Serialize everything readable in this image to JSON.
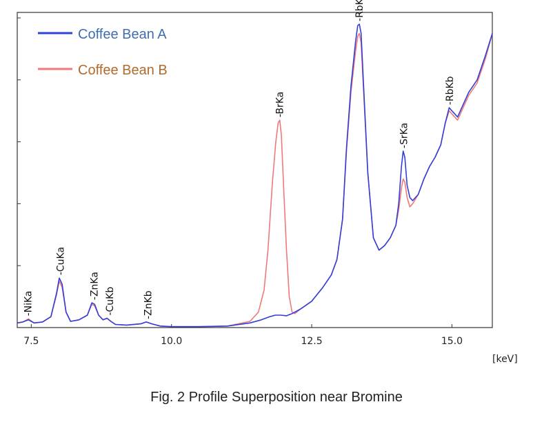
{
  "chart_data": {
    "type": "line",
    "xlabel": "[keV]",
    "ylabel": "",
    "xlim": [
      7.25,
      15.72
    ],
    "ylim": [
      0,
      100
    ],
    "x_ticks": [
      "7.5",
      "10.0",
      "12.5",
      "15.0"
    ],
    "x_tick_values": [
      7.5,
      10.0,
      12.5,
      15.0
    ],
    "y_tick_values": [
      0,
      20,
      40,
      60,
      80,
      100
    ],
    "grid": false,
    "legend_position": "top-left",
    "series": [
      {
        "name": "Coffee Bean A",
        "color": "#2f3fd8",
        "x": [
          7.25,
          7.35,
          7.45,
          7.55,
          7.7,
          7.85,
          7.95,
          8.0,
          8.05,
          8.12,
          8.2,
          8.35,
          8.5,
          8.58,
          8.63,
          8.7,
          8.78,
          8.85,
          8.92,
          9.0,
          9.2,
          9.45,
          9.55,
          9.65,
          9.8,
          10.0,
          10.5,
          11.0,
          11.4,
          11.6,
          11.75,
          11.85,
          11.95,
          12.05,
          12.15,
          12.3,
          12.5,
          12.7,
          12.85,
          12.95,
          13.05,
          13.12,
          13.2,
          13.28,
          13.32,
          13.35,
          13.38,
          13.42,
          13.5,
          13.6,
          13.7,
          13.8,
          13.9,
          14.0,
          14.05,
          14.1,
          14.13,
          14.16,
          14.2,
          14.25,
          14.3,
          14.4,
          14.5,
          14.6,
          14.7,
          14.8,
          14.88,
          14.95,
          15.0,
          15.1,
          15.2,
          15.3,
          15.45,
          15.6,
          15.72
        ],
        "y": [
          1.5,
          1.8,
          2.5,
          1.5,
          1.8,
          3.5,
          11.0,
          16.0,
          14.0,
          5.0,
          2.0,
          2.5,
          4.0,
          8.0,
          7.5,
          4.0,
          2.5,
          3.0,
          2.0,
          1.0,
          0.8,
          1.2,
          1.8,
          1.2,
          0.5,
          0.3,
          0.3,
          0.5,
          1.5,
          2.5,
          3.5,
          4.0,
          4.0,
          3.8,
          4.5,
          6.0,
          8.5,
          13.0,
          17.0,
          22.0,
          35.0,
          58.0,
          78.0,
          92.0,
          97.5,
          98.0,
          95.0,
          80.0,
          50.0,
          29.0,
          25.0,
          26.5,
          29.0,
          33.0,
          40.0,
          52.0,
          57.0,
          55.0,
          46.0,
          42.0,
          41.0,
          43.0,
          48.0,
          52.0,
          55.0,
          59.0,
          66.0,
          71.0,
          70.0,
          68.0,
          72.0,
          76.0,
          80.0,
          88.0,
          95.0
        ]
      },
      {
        "name": "Coffee Bean B",
        "color": "#f07878",
        "x": [
          7.25,
          7.35,
          7.45,
          7.55,
          7.7,
          7.85,
          7.95,
          8.0,
          8.05,
          8.12,
          8.2,
          8.35,
          8.5,
          8.58,
          8.63,
          8.7,
          8.78,
          8.85,
          8.92,
          9.0,
          9.2,
          9.45,
          9.55,
          9.65,
          9.8,
          10.0,
          10.5,
          11.0,
          11.4,
          11.55,
          11.65,
          11.72,
          11.8,
          11.86,
          11.9,
          11.93,
          11.96,
          12.0,
          12.05,
          12.1,
          12.15,
          12.2,
          12.3,
          12.5,
          12.7,
          12.85,
          12.95,
          13.05,
          13.12,
          13.2,
          13.28,
          13.32,
          13.35,
          13.38,
          13.42,
          13.5,
          13.6,
          13.7,
          13.8,
          13.9,
          14.0,
          14.05,
          14.1,
          14.13,
          14.16,
          14.2,
          14.25,
          14.3,
          14.4,
          14.5,
          14.6,
          14.7,
          14.8,
          14.88,
          14.95,
          15.0,
          15.1,
          15.2,
          15.3,
          15.45,
          15.6,
          15.72
        ],
        "y": [
          1.5,
          1.8,
          2.8,
          1.5,
          1.8,
          3.5,
          10.5,
          15.0,
          13.0,
          5.0,
          2.0,
          2.5,
          4.0,
          7.5,
          7.0,
          4.0,
          2.5,
          3.0,
          2.0,
          1.0,
          0.8,
          1.2,
          1.8,
          1.2,
          0.5,
          0.3,
          0.3,
          0.5,
          2.0,
          5.0,
          12.0,
          25.0,
          47.0,
          60.0,
          66.0,
          67.0,
          62.0,
          45.0,
          25.0,
          10.0,
          5.0,
          4.5,
          6.0,
          8.5,
          13.0,
          17.0,
          22.0,
          35.0,
          57.0,
          76.0,
          89.0,
          94.0,
          95.0,
          92.0,
          78.0,
          50.0,
          29.0,
          25.0,
          26.5,
          29.0,
          33.0,
          38.0,
          45.0,
          48.0,
          47.0,
          42.0,
          39.0,
          40.0,
          43.0,
          48.0,
          52.0,
          55.0,
          59.0,
          66.0,
          70.0,
          69.0,
          67.0,
          71.0,
          75.0,
          79.0,
          87.0,
          95.0
        ]
      }
    ],
    "annotations": [
      {
        "text": "-NiKa",
        "x": 7.44,
        "y": 2.8
      },
      {
        "text": "-CuKa",
        "x": 8.02,
        "y": 16.0
      },
      {
        "text": "-ZnKa",
        "x": 8.62,
        "y": 8.0
      },
      {
        "text": "-CuKb",
        "x": 8.9,
        "y": 3.0
      },
      {
        "text": "-ZnKb",
        "x": 9.58,
        "y": 1.8
      },
      {
        "text": "-BrKa",
        "x": 11.93,
        "y": 67.0
      },
      {
        "text": "-RbKa",
        "x": 13.35,
        "y": 98.0
      },
      {
        "text": "-SrKa",
        "x": 14.14,
        "y": 57.0
      },
      {
        "text": "-RbKb",
        "x": 14.96,
        "y": 71.0
      }
    ]
  },
  "caption": "Fig. 2 Profile Superposition near Bromine"
}
